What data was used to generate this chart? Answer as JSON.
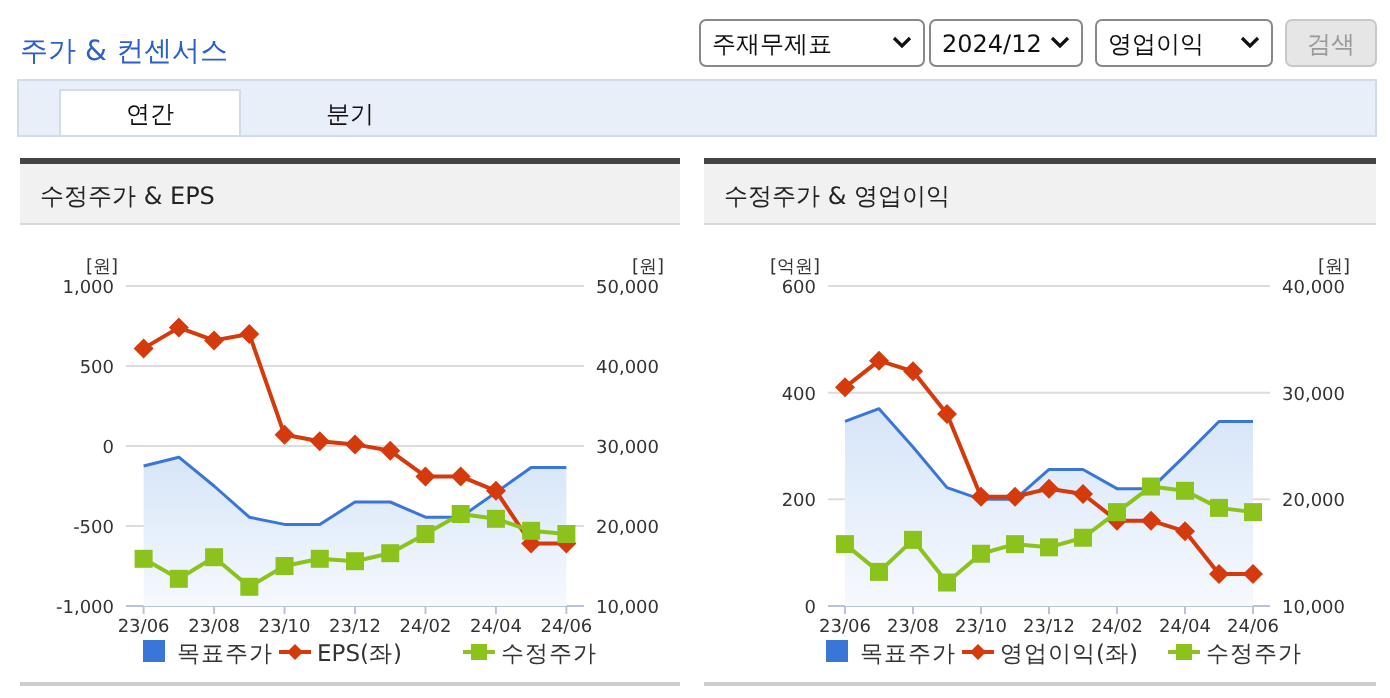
{
  "chart_data": [
    {
      "type": "other",
      "title": "주가 & 컨센서스",
      "annotations": [
        "주재무제표",
        "2024/12",
        "영업이익",
        "검색",
        "연간",
        "분기"
      ]
    },
    {
      "type": "line",
      "title": "수정주가 & EPS",
      "ylabel": "[원]",
      "y2label": "[원]",
      "categories": [
        "23/06",
        null,
        "23/08",
        null,
        "23/10",
        null,
        "23/12",
        null,
        "24/02",
        null,
        "24/04",
        null,
        "24/06"
      ],
      "ylim": [
        -1000,
        1000
      ],
      "yticks": [
        {
          "value": -1000,
          "label": "-1,000"
        },
        -500,
        0,
        500,
        {
          "value": 1000,
          "label": "1,000"
        }
      ],
      "y2lim": [
        10000,
        50000
      ],
      "y2ticks": [
        {
          "value": 10000,
          "label": "10,000"
        },
        {
          "value": 20000,
          "label": "20,000"
        },
        {
          "value": 30000,
          "label": "30,000"
        },
        {
          "value": 40000,
          "label": "40,000"
        },
        {
          "value": 50000,
          "label": "50,000"
        }
      ],
      "grid": "y",
      "legend": "bottom",
      "series": [
        {
          "name": "목표주가",
          "type": "area",
          "axis": "y2",
          "color": "#3a75d8",
          "marker": "none",
          "values": [
            27500,
            28600,
            25000,
            21100,
            20200,
            20200,
            23000,
            23000,
            21100,
            21100,
            24200,
            27300,
            27300
          ]
        },
        {
          "name": "EPS(좌)",
          "color": "#d53a0c",
          "marker": "diamond",
          "values": [
            610,
            740,
            660,
            700,
            70,
            30,
            10,
            -30,
            -190,
            -190,
            -280,
            -610,
            -610
          ]
        },
        {
          "name": "수정주가",
          "axis": "y2",
          "color": "#8cc21c",
          "marker": "square",
          "values": [
            15900,
            13400,
            16100,
            12400,
            15000,
            15900,
            15600,
            16600,
            19000,
            21500,
            20900,
            19400,
            19000
          ]
        }
      ]
    },
    {
      "type": "line",
      "title": "수정주가 & 영업이익",
      "ylabel": "[억원]",
      "y2label": "[원]",
      "categories": [
        "23/06",
        null,
        "23/08",
        null,
        "23/10",
        null,
        "23/12",
        null,
        "24/02",
        null,
        "24/04",
        null,
        "24/06"
      ],
      "ylim": [
        0,
        600
      ],
      "yticks": [
        0,
        200,
        400,
        600
      ],
      "y2lim": [
        10000,
        40000
      ],
      "y2ticks": [
        {
          "value": 10000,
          "label": "10,000"
        },
        {
          "value": 20000,
          "label": "20,000"
        },
        {
          "value": 30000,
          "label": "30,000"
        },
        {
          "value": 40000,
          "label": "40,000"
        }
      ],
      "grid": "y",
      "legend": "bottom",
      "series": [
        {
          "name": "목표주가",
          "type": "area",
          "axis": "y2",
          "color": "#3a75d8",
          "marker": "none",
          "values": [
            27300,
            28500,
            24900,
            21100,
            20000,
            20000,
            22800,
            22800,
            21000,
            21000,
            24100,
            27300,
            27300
          ]
        },
        {
          "name": "영업이익(좌)",
          "color": "#d53a0c",
          "marker": "diamond",
          "values": [
            410,
            460,
            440,
            360,
            205,
            205,
            220,
            210,
            160,
            160,
            140,
            60,
            60
          ]
        },
        {
          "name": "수정주가",
          "axis": "y2",
          "color": "#8cc21c",
          "marker": "square",
          "values": [
            15800,
            13200,
            16200,
            12200,
            14900,
            15800,
            15500,
            16400,
            18800,
            21200,
            20800,
            19200,
            18800
          ]
        }
      ]
    }
  ]
}
